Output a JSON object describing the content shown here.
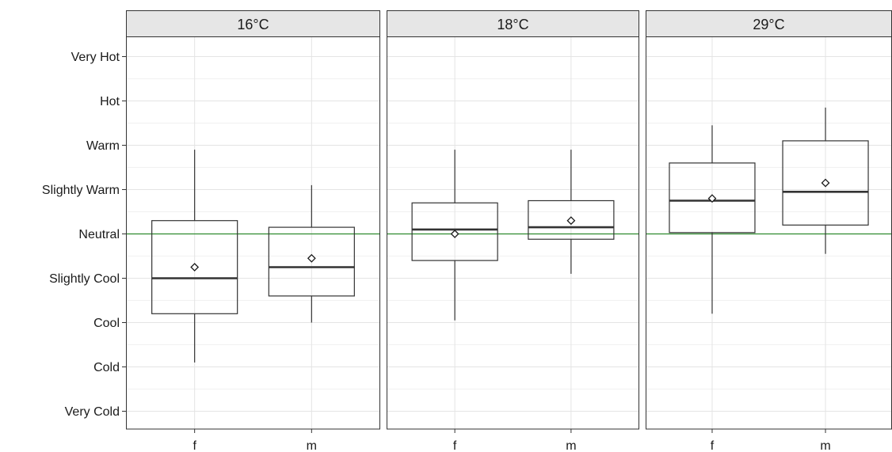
{
  "chart_data": {
    "type": "boxplot",
    "title": "",
    "xlabel": "",
    "ylabel": "",
    "grid": true,
    "facets": [
      "16°C",
      "18°C",
      "29°C"
    ],
    "categories": [
      "f",
      "m"
    ],
    "y_ticks": [
      "Very Cold",
      "Cold",
      "Cool",
      "Slightly Cool",
      "Neutral",
      "Slightly Warm",
      "Warm",
      "Hot",
      "Very Hot"
    ],
    "y_tick_values": [
      -4,
      -3,
      -2,
      -1,
      0,
      1,
      2,
      3,
      4
    ],
    "ylim": [
      -4.4,
      4.4
    ],
    "reference_line": {
      "y": 0,
      "color": "#2e8b2e"
    },
    "panels": [
      {
        "facet": "16°C",
        "boxes": [
          {
            "category": "f",
            "whisker_low": -2.9,
            "q1": -1.8,
            "median": -1.0,
            "q3": 0.3,
            "whisker_high": 1.9,
            "mean": -0.75
          },
          {
            "category": "m",
            "whisker_low": -2.0,
            "q1": -1.4,
            "median": -0.75,
            "q3": 0.15,
            "whisker_high": 1.1,
            "mean": -0.55
          }
        ]
      },
      {
        "facet": "18°C",
        "boxes": [
          {
            "category": "f",
            "whisker_low": -1.95,
            "q1": -0.6,
            "median": 0.1,
            "q3": 0.7,
            "whisker_high": 1.9,
            "mean": 0.0
          },
          {
            "category": "m",
            "whisker_low": -0.9,
            "q1": -0.12,
            "median": 0.15,
            "q3": 0.75,
            "whisker_high": 1.9,
            "mean": 0.3
          }
        ]
      },
      {
        "facet": "29°C",
        "boxes": [
          {
            "category": "f",
            "whisker_low": -1.8,
            "q1": 0.03,
            "median": 0.75,
            "q3": 1.6,
            "whisker_high": 2.45,
            "mean": 0.8
          },
          {
            "category": "m",
            "whisker_low": -0.45,
            "q1": 0.2,
            "median": 0.95,
            "q3": 2.1,
            "whisker_high": 2.85,
            "mean": 1.15
          }
        ]
      }
    ]
  }
}
